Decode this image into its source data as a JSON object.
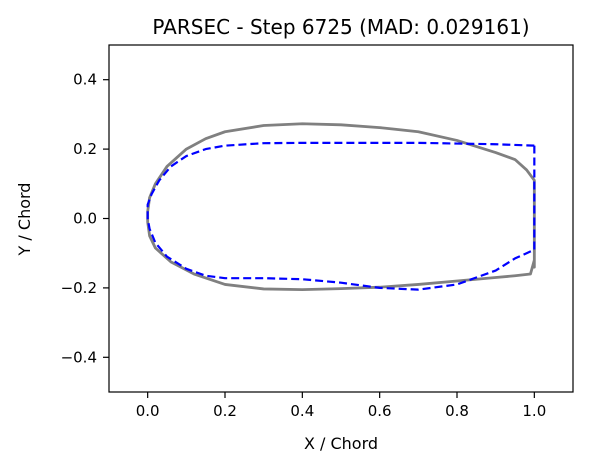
{
  "chart_data": {
    "type": "line",
    "title": "PARSEC - Step 6725 (MAD: 0.029161)",
    "xlabel": "X / Chord",
    "ylabel": "Y / Chord",
    "xlim": [
      -0.1,
      1.1
    ],
    "ylim": [
      -0.5,
      0.5
    ],
    "xticks": [
      0.0,
      0.2,
      0.4,
      0.6,
      0.8,
      1.0
    ],
    "xtick_labels": [
      "0.0",
      "0.2",
      "0.4",
      "0.6",
      "0.8",
      "1.0"
    ],
    "yticks": [
      -0.4,
      -0.2,
      0.0,
      0.2,
      0.4
    ],
    "ytick_labels": [
      "−0.4",
      "−0.2",
      "0.0",
      "0.2",
      "0.4"
    ],
    "grid": false,
    "series": [
      {
        "color": "#808080",
        "linestyle": "solid",
        "points": [
          [
            1.0,
            -0.14
          ],
          [
            1.0,
            -0.12
          ],
          [
            0.99,
            -0.16
          ],
          [
            0.95,
            -0.165
          ],
          [
            0.9,
            -0.17
          ],
          [
            0.8,
            -0.18
          ],
          [
            0.7,
            -0.19
          ],
          [
            0.6,
            -0.198
          ],
          [
            0.5,
            -0.202
          ],
          [
            0.4,
            -0.205
          ],
          [
            0.3,
            -0.203
          ],
          [
            0.2,
            -0.19
          ],
          [
            0.12,
            -0.16
          ],
          [
            0.06,
            -0.125
          ],
          [
            0.02,
            -0.085
          ],
          [
            0.005,
            -0.05
          ],
          [
            0.0,
            -0.01
          ],
          [
            0.0,
            0.02
          ],
          [
            0.005,
            0.06
          ],
          [
            0.02,
            0.1
          ],
          [
            0.05,
            0.15
          ],
          [
            0.1,
            0.2
          ],
          [
            0.15,
            0.23
          ],
          [
            0.2,
            0.25
          ],
          [
            0.3,
            0.268
          ],
          [
            0.4,
            0.273
          ],
          [
            0.5,
            0.27
          ],
          [
            0.6,
            0.262
          ],
          [
            0.7,
            0.25
          ],
          [
            0.8,
            0.225
          ],
          [
            0.9,
            0.19
          ],
          [
            0.95,
            0.17
          ],
          [
            0.98,
            0.14
          ],
          [
            1.0,
            0.11
          ],
          [
            1.0,
            -0.14
          ]
        ]
      },
      {
        "color": "#0000ff",
        "linestyle": "dashed",
        "points": [
          [
            1.0,
            0.21
          ],
          [
            0.95,
            0.212
          ],
          [
            0.9,
            0.214
          ],
          [
            0.8,
            0.216
          ],
          [
            0.7,
            0.218
          ],
          [
            0.6,
            0.218
          ],
          [
            0.5,
            0.218
          ],
          [
            0.4,
            0.218
          ],
          [
            0.3,
            0.217
          ],
          [
            0.2,
            0.21
          ],
          [
            0.15,
            0.2
          ],
          [
            0.1,
            0.18
          ],
          [
            0.06,
            0.15
          ],
          [
            0.03,
            0.11
          ],
          [
            0.01,
            0.07
          ],
          [
            0.0,
            0.04
          ],
          [
            0.0,
            0.0
          ],
          [
            0.005,
            -0.03
          ],
          [
            0.02,
            -0.07
          ],
          [
            0.05,
            -0.11
          ],
          [
            0.1,
            -0.145
          ],
          [
            0.15,
            -0.165
          ],
          [
            0.2,
            -0.172
          ],
          [
            0.3,
            -0.172
          ],
          [
            0.4,
            -0.175
          ],
          [
            0.5,
            -0.185
          ],
          [
            0.6,
            -0.2
          ],
          [
            0.7,
            -0.205
          ],
          [
            0.8,
            -0.19
          ],
          [
            0.9,
            -0.15
          ],
          [
            0.95,
            -0.115
          ],
          [
            0.98,
            -0.1
          ],
          [
            1.0,
            -0.09
          ],
          [
            1.0,
            0.21
          ]
        ]
      }
    ]
  }
}
